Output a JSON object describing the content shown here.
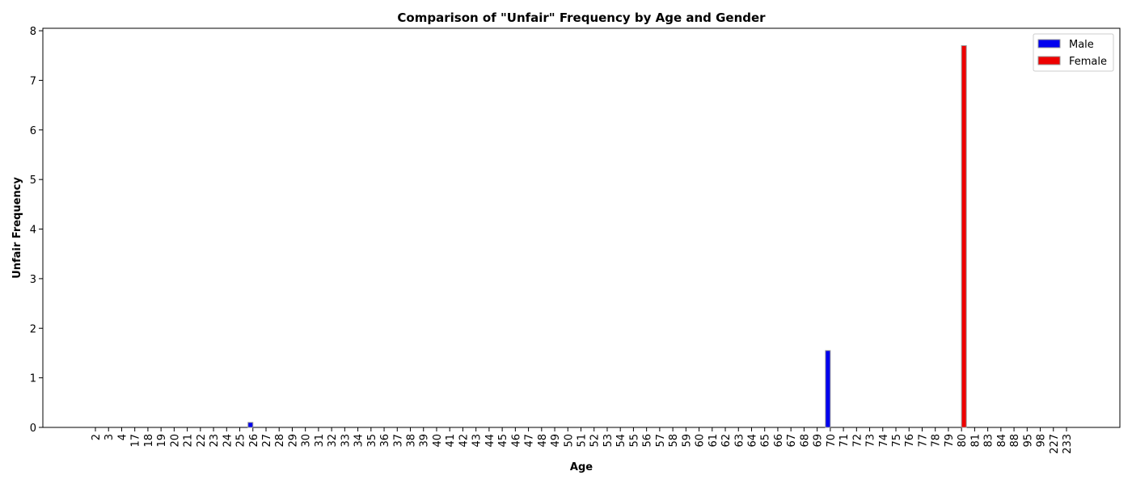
{
  "chart_data": {
    "type": "bar",
    "title": "Comparison of \"Unfair\" Frequency by Age and Gender",
    "xlabel": "Age",
    "ylabel": "Unfair Frequency",
    "categories": [
      "2",
      "3",
      "4",
      "17",
      "18",
      "19",
      "20",
      "21",
      "22",
      "23",
      "24",
      "25",
      "26",
      "27",
      "28",
      "29",
      "30",
      "31",
      "32",
      "33",
      "34",
      "35",
      "36",
      "37",
      "38",
      "39",
      "40",
      "41",
      "42",
      "43",
      "44",
      "45",
      "46",
      "47",
      "48",
      "49",
      "50",
      "51",
      "52",
      "53",
      "54",
      "55",
      "56",
      "57",
      "58",
      "59",
      "60",
      "61",
      "62",
      "63",
      "64",
      "65",
      "66",
      "67",
      "68",
      "69",
      "70",
      "71",
      "72",
      "73",
      "74",
      "75",
      "76",
      "77",
      "78",
      "79",
      "80",
      "81",
      "83",
      "84",
      "88",
      "95",
      "98",
      "227",
      "233"
    ],
    "series": [
      {
        "name": "Male",
        "color": "#0000ee",
        "values": [
          0,
          0,
          0,
          0,
          0,
          0,
          0,
          0,
          0,
          0,
          0,
          0,
          0.1,
          0,
          0,
          0,
          0,
          0,
          0,
          0,
          0,
          0,
          0,
          0,
          0,
          0,
          0,
          0,
          0,
          0,
          0,
          0,
          0,
          0,
          0,
          0,
          0,
          0,
          0,
          0,
          0,
          0,
          0,
          0,
          0,
          0,
          0,
          0,
          0,
          0,
          0,
          0,
          0,
          0,
          0,
          0,
          1.55,
          0,
          0,
          0,
          0,
          0,
          0,
          0,
          0,
          0,
          0,
          0,
          0,
          0,
          0,
          0,
          0,
          0,
          0
        ]
      },
      {
        "name": "Female",
        "color": "#ee0000",
        "values": [
          0,
          0,
          0,
          0,
          0,
          0,
          0,
          0,
          0,
          0,
          0,
          0,
          0,
          0,
          0,
          0,
          0,
          0,
          0,
          0,
          0,
          0,
          0,
          0,
          0,
          0,
          0,
          0,
          0,
          0,
          0,
          0,
          0,
          0,
          0,
          0,
          0,
          0,
          0,
          0,
          0,
          0,
          0,
          0,
          0,
          0,
          0,
          0,
          0,
          0,
          0,
          0,
          0,
          0,
          0,
          0,
          0,
          0,
          0,
          0,
          0,
          0,
          0,
          0,
          0,
          0,
          7.7,
          0,
          0,
          0,
          0,
          0,
          0,
          0,
          0
        ]
      }
    ],
    "ylim": [
      0,
      8.05
    ],
    "yticks": [
      0,
      1,
      2,
      3,
      4,
      5,
      6,
      7,
      8
    ],
    "grid": false,
    "legend_position": "top-right"
  }
}
